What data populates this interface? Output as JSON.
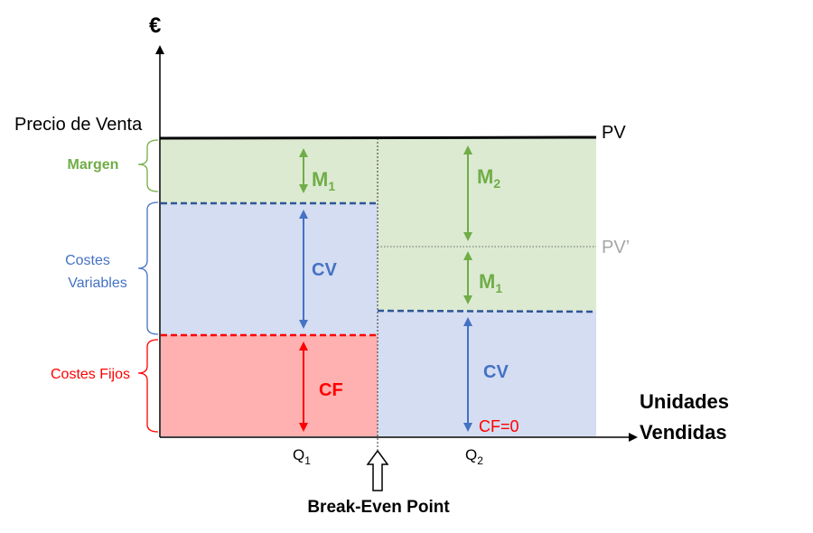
{
  "axes": {
    "y_label": "€",
    "x_label_line1": "Unidades",
    "x_label_line2": "Vendidas"
  },
  "price_label": "Precio de Venta",
  "left_labels": {
    "margen": "Margen",
    "costes_variables_1": "Costes",
    "costes_variables_2": "Variables",
    "costes_fijos": "Costes Fijos"
  },
  "lines": {
    "pv": "PV",
    "pv_prime": "PV’"
  },
  "left_block": {
    "m1_main": "M",
    "m1_sub": "1",
    "cv": "CV",
    "cf": "CF"
  },
  "right_block": {
    "m2_main": "M",
    "m2_sub": "2",
    "m1_main": "M",
    "m1_sub": "1",
    "cv": "CV",
    "cf_zero": "CF=0"
  },
  "ticks": {
    "q1_main": "Q",
    "q1_sub": "1",
    "q2_main": "Q",
    "q2_sub": "2"
  },
  "break_even": "Break-Even Point",
  "colors": {
    "margin_fill": "#dcead2",
    "variable_fill": "#d4ddf1",
    "fixed_fill": "#ffb1b1",
    "green": "#70ad47",
    "blue": "#4472c4",
    "dark_blue": "#2f5597",
    "red": "#ff0000",
    "gray": "#a6a6a6",
    "black": "#000000"
  }
}
